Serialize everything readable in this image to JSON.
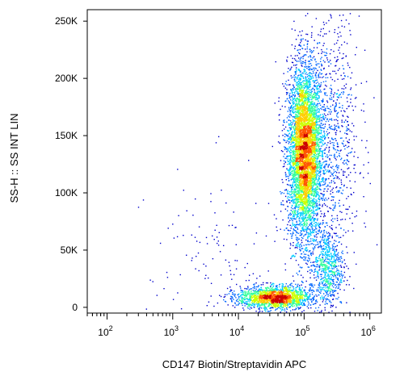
{
  "chart_data": {
    "type": "scatter",
    "title": "",
    "xlabel": "CD147 Biotin/Streptavidin APC",
    "ylabel": "SS-H :: SS INT LIN",
    "x_scale": "log",
    "y_scale": "linear",
    "xlim": [
      50,
      1500000
    ],
    "ylim": [
      -5000,
      260000
    ],
    "x_ticks": [
      {
        "value": 100,
        "base": "10",
        "exp": "2"
      },
      {
        "value": 1000,
        "base": "10",
        "exp": "3"
      },
      {
        "value": 10000,
        "base": "10",
        "exp": "4"
      },
      {
        "value": 100000,
        "base": "10",
        "exp": "5"
      },
      {
        "value": 1000000,
        "base": "10",
        "exp": "6"
      }
    ],
    "y_ticks": [
      {
        "value": 0,
        "label": "0"
      },
      {
        "value": 50000,
        "label": "50K"
      },
      {
        "value": 100000,
        "label": "100K"
      },
      {
        "value": 150000,
        "label": "150K"
      },
      {
        "value": 200000,
        "label": "200K"
      },
      {
        "value": 250000,
        "label": "250K"
      }
    ],
    "grid": false,
    "legend": "none",
    "color_map": [
      "#0000cc",
      "#0066ff",
      "#00ccff",
      "#33ff99",
      "#ccff00",
      "#ffcc00",
      "#ff5500",
      "#cc0000"
    ],
    "populations": [
      {
        "log_x_center": 5.0,
        "y_center": 135000,
        "log_x_sd": 0.13,
        "y_sd": 38000,
        "count": 5200
      },
      {
        "log_x_center": 4.55,
        "y_center": 9000,
        "log_x_sd": 0.28,
        "y_sd": 5000,
        "count": 1800
      },
      {
        "log_x_center": 5.35,
        "y_center": 35000,
        "log_x_sd": 0.12,
        "y_sd": 18000,
        "count": 700
      },
      {
        "log_x_center": 5.4,
        "y_center": 150000,
        "log_x_sd": 0.22,
        "y_sd": 55000,
        "count": 900
      },
      {
        "log_x_center": 3.6,
        "y_center": 40000,
        "log_x_sd": 0.5,
        "y_sd": 40000,
        "count": 120
      }
    ]
  }
}
